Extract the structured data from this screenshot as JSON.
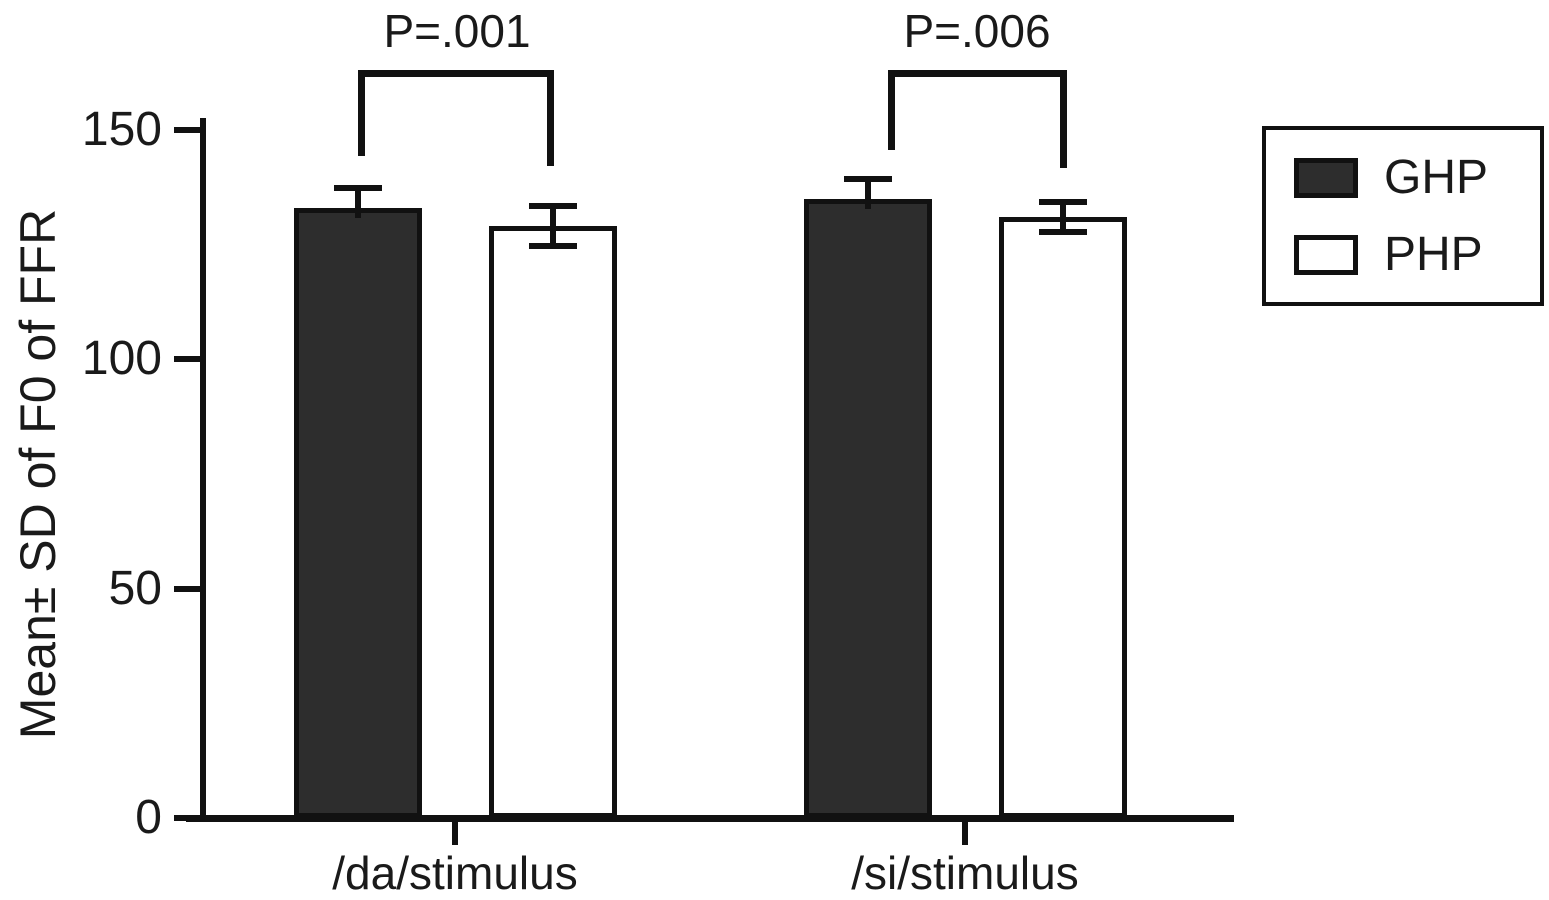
{
  "chart_data": {
    "type": "bar",
    "title": "",
    "xlabel": "",
    "ylabel": "Mean± SD of F0 of FFR",
    "ylim": [
      0,
      150
    ],
    "yticks": [
      "0",
      "50",
      "100",
      "150"
    ],
    "grid": false,
    "categories": [
      "/da/stimulus",
      "/si/stimulus"
    ],
    "series": [
      {
        "name": "GHP",
        "color": "#2d2d2d",
        "values": [
          133,
          135
        ],
        "errors": [
          5,
          5
        ]
      },
      {
        "name": "PHP",
        "color": "#ffffff",
        "values": [
          129,
          131
        ],
        "errors": [
          5,
          4
        ]
      }
    ],
    "annotations": [
      {
        "label": "P=.001",
        "group": "/da/stimulus"
      },
      {
        "label": "P=.006",
        "group": "/si/stimulus"
      }
    ],
    "legend": {
      "position": "top-right",
      "entries": [
        "GHP",
        "PHP"
      ]
    }
  }
}
